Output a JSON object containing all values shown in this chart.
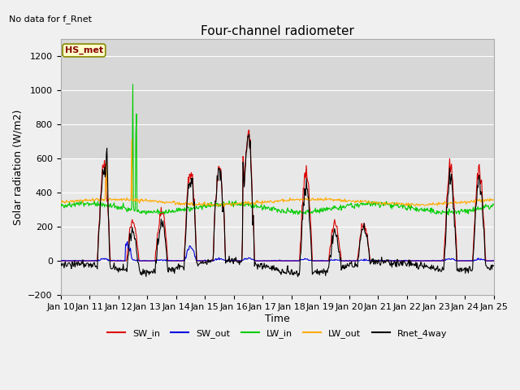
{
  "title": "Four-channel radiometer",
  "top_left_text": "No data for f_Rnet",
  "ylabel": "Solar radiation (W/m2)",
  "xlabel": "Time",
  "annotation_label": "HS_met",
  "xlim_days": [
    10,
    25
  ],
  "ylim": [
    -200,
    1300
  ],
  "yticks": [
    -200,
    0,
    200,
    400,
    600,
    800,
    1000,
    1200
  ],
  "xtick_labels": [
    "Jan 10",
    "Jan 11",
    "Jan 12",
    "Jan 13",
    "Jan 14",
    "Jan 15",
    "Jan 16",
    "Jan 17",
    "Jan 18",
    "Jan 19",
    "Jan 20",
    "Jan 21",
    "Jan 22",
    "Jan 23",
    "Jan 24",
    "Jan 25"
  ],
  "series": {
    "SW_in": {
      "color": "#dd0000",
      "lw": 0.8
    },
    "SW_out": {
      "color": "#0000dd",
      "lw": 0.8
    },
    "LW_in": {
      "color": "#00cc00",
      "lw": 0.8
    },
    "LW_out": {
      "color": "#ffaa00",
      "lw": 0.8
    },
    "Rnet_4way": {
      "color": "#000000",
      "lw": 0.8
    }
  },
  "legend_entries": [
    "SW_in",
    "SW_out",
    "LW_in",
    "LW_out",
    "Rnet_4way"
  ],
  "legend_colors": [
    "#dd0000",
    "#0000dd",
    "#00cc00",
    "#ffaa00",
    "#000000"
  ],
  "bg_color": "#f0f0f0",
  "plot_bg_color": "#e8e8e8",
  "grid_color": "#ffffff",
  "shade_top_color": "#d8d8d8"
}
